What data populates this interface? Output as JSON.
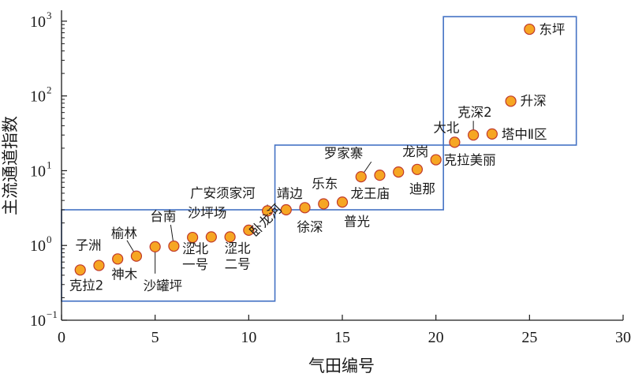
{
  "chart_data": {
    "type": "scatter",
    "title": "",
    "xlabel": "气田编号",
    "ylabel": "主流通道指数",
    "xlim": [
      0,
      30
    ],
    "ylim": [
      0.1,
      1400
    ],
    "y_scale": "log",
    "x_ticks": [
      0,
      5,
      10,
      15,
      20,
      25,
      30
    ],
    "y_ticks": [
      {
        "value": 0.1,
        "base": "10",
        "exp": "−1"
      },
      {
        "value": 1,
        "base": "10",
        "exp": "0"
      },
      {
        "value": 10,
        "base": "10",
        "exp": "1"
      },
      {
        "value": 100,
        "base": "10",
        "exp": "2"
      },
      {
        "value": 1000,
        "base": "10",
        "exp": "3"
      }
    ],
    "grid": false,
    "marker_fill": "#f6a623",
    "marker_stroke": "#c0392b",
    "box_color": "#4472c4",
    "points": [
      {
        "x": 1,
        "y": 0.47,
        "label": "克拉2"
      },
      {
        "x": 2,
        "y": 0.54,
        "label": "子洲"
      },
      {
        "x": 3,
        "y": 0.66,
        "label": "神木"
      },
      {
        "x": 4,
        "y": 0.72,
        "label": "榆林"
      },
      {
        "x": 5,
        "y": 0.96,
        "label": "沙罐坪"
      },
      {
        "x": 6,
        "y": 0.98,
        "label": "台南"
      },
      {
        "x": 7,
        "y": 1.28,
        "label": "涩北一号"
      },
      {
        "x": 8,
        "y": 1.3,
        "label": "沙坪场"
      },
      {
        "x": 9,
        "y": 1.3,
        "label": "涩北二号"
      },
      {
        "x": 10,
        "y": 1.6,
        "label": "卧龙河"
      },
      {
        "x": 11,
        "y": 2.9,
        "label": "广安须家河"
      },
      {
        "x": 12,
        "y": 3.0,
        "label": "靖边"
      },
      {
        "x": 13,
        "y": 3.2,
        "label": "徐深"
      },
      {
        "x": 14,
        "y": 3.6,
        "label": "乐东"
      },
      {
        "x": 15,
        "y": 3.8,
        "label": "普光"
      },
      {
        "x": 16,
        "y": 8.3,
        "label": "罗家寨"
      },
      {
        "x": 17,
        "y": 8.7,
        "label": "龙王庙"
      },
      {
        "x": 18,
        "y": 9.6,
        "label": "龙岗"
      },
      {
        "x": 19,
        "y": 10.4,
        "label": "迪那"
      },
      {
        "x": 20,
        "y": 14,
        "label": "克拉美丽"
      },
      {
        "x": 21,
        "y": 24,
        "label": "大北"
      },
      {
        "x": 22,
        "y": 30,
        "label": "克深2"
      },
      {
        "x": 23,
        "y": 31,
        "label": "塔中Ⅱ区"
      },
      {
        "x": 24,
        "y": 85,
        "label": "升深"
      },
      {
        "x": 25,
        "y": 780,
        "label": "东坪"
      }
    ],
    "groups": [
      {
        "x_range": [
          0,
          11.4
        ],
        "y_range": [
          0.18,
          3.0
        ]
      },
      {
        "x_range": [
          11.4,
          20.4
        ],
        "y_range": [
          3.0,
          22
        ]
      },
      {
        "x_range": [
          20.4,
          27.5
        ],
        "y_range": [
          22,
          1150
        ]
      }
    ]
  }
}
